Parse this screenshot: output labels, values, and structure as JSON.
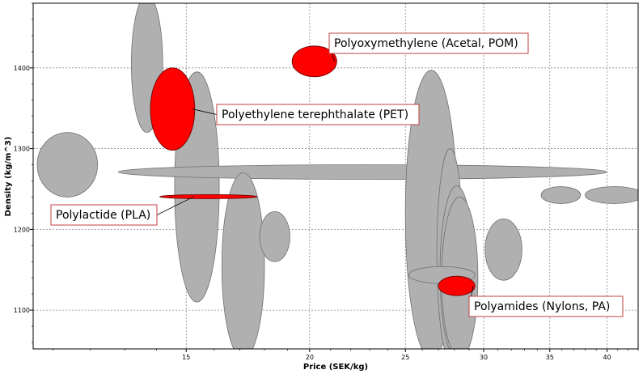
{
  "chart_data": {
    "type": "scatter",
    "subtype": "material-property-bubble-chart",
    "xlabel": "Price (SEK/kg)",
    "ylabel": "Density (kg/m^3)",
    "x_scale": "log",
    "xlim": [
      10.5,
      43
    ],
    "ylim": [
      1052,
      1480
    ],
    "x_ticks": [
      15,
      20,
      25,
      30,
      35,
      40
    ],
    "y_ticks": [
      1100,
      1200,
      1300,
      1400
    ],
    "grid": true,
    "colors": {
      "highlight": "#ff0000",
      "background_material": "#b0b0b0",
      "outline": "#707070",
      "label_border": "#c04040"
    },
    "materials": [
      {
        "x_min": 13.2,
        "x_max": 14.2,
        "y_min": 1320,
        "y_max": 1490,
        "highlighted": false
      },
      {
        "x_min": 14.6,
        "x_max": 16.2,
        "y_min": 1110,
        "y_max": 1395,
        "highlighted": false
      },
      {
        "x_min": 10.6,
        "x_max": 12.2,
        "y_min": 1240,
        "y_max": 1320,
        "highlighted": false
      },
      {
        "x_min": 12.8,
        "x_max": 40.0,
        "y_min": 1262,
        "y_max": 1280,
        "highlighted": false
      },
      {
        "x_min": 16.3,
        "x_max": 18.0,
        "y_min": 1040,
        "y_max": 1270,
        "highlighted": false
      },
      {
        "x_min": 17.8,
        "x_max": 19.1,
        "y_min": 1160,
        "y_max": 1222,
        "highlighted": false
      },
      {
        "x_min": 25.0,
        "x_max": 28.2,
        "y_min": 1040,
        "y_max": 1397,
        "highlighted": false
      },
      {
        "x_min": 26.9,
        "x_max": 28.6,
        "y_min": 1040,
        "y_max": 1300,
        "highlighted": false
      },
      {
        "x_min": 27.1,
        "x_max": 29.3,
        "y_min": 1040,
        "y_max": 1254,
        "highlighted": false
      },
      {
        "x_min": 27.2,
        "x_max": 29.6,
        "y_min": 1040,
        "y_max": 1240,
        "highlighted": false
      },
      {
        "x_min": 30.1,
        "x_max": 32.8,
        "y_min": 1137,
        "y_max": 1213,
        "highlighted": false
      },
      {
        "x_min": 25.2,
        "x_max": 29.4,
        "y_min": 1133,
        "y_max": 1154,
        "highlighted": false
      },
      {
        "x_min": 34.3,
        "x_max": 37.6,
        "y_min": 1232,
        "y_max": 1253,
        "highlighted": false
      },
      {
        "x_min": 38.0,
        "x_max": 43.5,
        "y_min": 1232,
        "y_max": 1253,
        "highlighted": false
      },
      {
        "name": "Polyoxymethylene (Acetal, POM)",
        "x_min": 19.2,
        "x_max": 21.3,
        "y_min": 1389,
        "y_max": 1427,
        "highlighted": true
      },
      {
        "name": "Polyethylene terephthalate (PET)",
        "x_min": 13.8,
        "x_max": 15.3,
        "y_min": 1298,
        "y_max": 1400,
        "highlighted": true
      },
      {
        "name": "Polylactide (PLA)",
        "x_min": 14.1,
        "x_max": 17.7,
        "y_min": 1238,
        "y_max": 1243,
        "highlighted": true
      },
      {
        "name": "Polyamides (Nylons, PA)",
        "x_min": 27.0,
        "x_max": 29.4,
        "y_min": 1118,
        "y_max": 1142,
        "highlighted": true
      }
    ]
  }
}
